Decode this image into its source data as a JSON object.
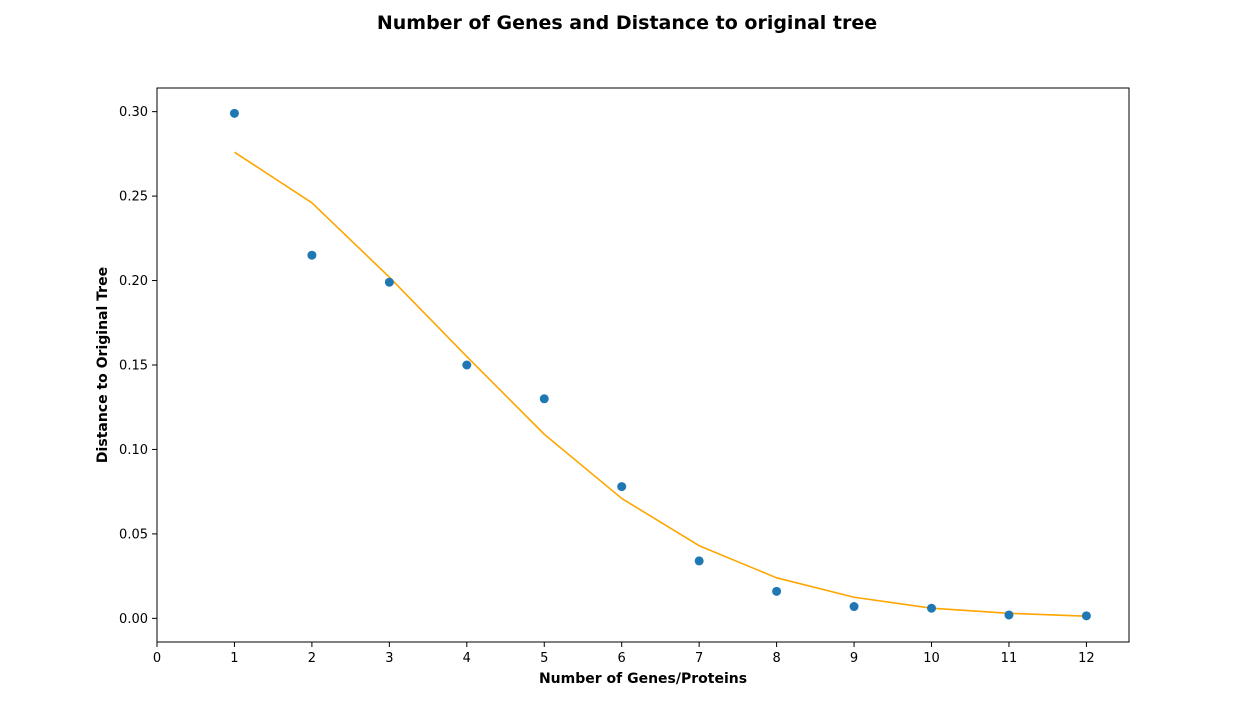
{
  "chart_data": {
    "type": "scatter",
    "title": "Number of Genes and Distance to original tree",
    "xlabel": "Number of Genes/Proteins",
    "ylabel": "Distance to Original Tree",
    "xlim": [
      0,
      12.55
    ],
    "ylim": [
      -0.014,
      0.314
    ],
    "xticks": [
      0,
      1,
      2,
      3,
      4,
      5,
      6,
      7,
      8,
      9,
      10,
      11,
      12
    ],
    "xtick_labels": [
      "0",
      "1",
      "2",
      "3",
      "4",
      "5",
      "6",
      "7",
      "8",
      "9",
      "10",
      "11",
      "12"
    ],
    "yticks": [
      0.0,
      0.05,
      0.1,
      0.15,
      0.2,
      0.25,
      0.3
    ],
    "ytick_labels": [
      "0.00",
      "0.05",
      "0.10",
      "0.15",
      "0.20",
      "0.25",
      "0.30"
    ],
    "grid": false,
    "series": [
      {
        "type": "scatter",
        "color": "#1f77b4",
        "x": [
          1,
          2,
          3,
          4,
          5,
          6,
          7,
          8,
          9,
          10,
          11,
          12
        ],
        "y": [
          0.299,
          0.215,
          0.199,
          0.15,
          0.13,
          0.078,
          0.034,
          0.016,
          0.007,
          0.006,
          0.002,
          0.0015
        ]
      },
      {
        "type": "line",
        "color": "#ffa500",
        "x": [
          1,
          2,
          3,
          4,
          5,
          6,
          7,
          8,
          9,
          10,
          11,
          12
        ],
        "y": [
          0.276,
          0.246,
          0.202,
          0.155,
          0.109,
          0.071,
          0.043,
          0.024,
          0.0125,
          0.006,
          0.003,
          0.0013
        ]
      }
    ]
  }
}
